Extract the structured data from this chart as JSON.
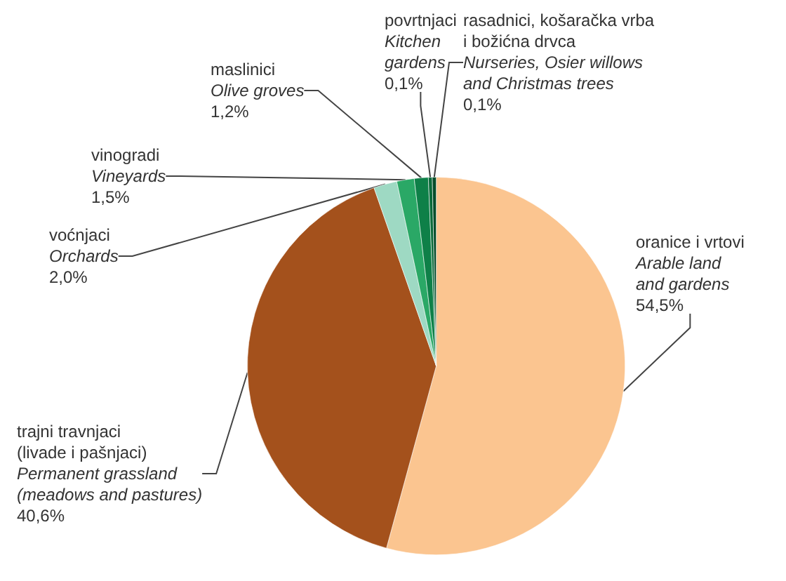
{
  "chart_data": {
    "type": "pie",
    "categories": [
      "oranice i vrtovi\n\nArable land\nand gardens",
      "trajni travnjaci\n(livade i pašnjaci)\n\nPermanent grassland\n(meadows and pastures)",
      "voćnjaci\n\nOrchards",
      "vinogradi\n\nVineyards",
      "maslinici\n\nOlive groves",
      "povrtnjaci\n\nKitchen\ngardens",
      "rasadnici, košaračka vrba\ni božićna drvca\n\nNurseries, Osier willows\nand Christmas trees"
    ],
    "values": [
      54.5,
      40.6,
      2.0,
      1.5,
      1.2,
      0.1,
      0.1
    ],
    "value_labels": [
      "54,5%",
      "40,6%",
      "2,0%",
      "1,5%",
      "1,2%",
      "0,1%",
      "0,1%"
    ],
    "colors": [
      "#fbc590",
      "#a4511c",
      "#9ed9c3",
      "#2aa866",
      "#0e8048",
      "#0a6a3a",
      "#064d2a"
    ],
    "legend": false
  }
}
